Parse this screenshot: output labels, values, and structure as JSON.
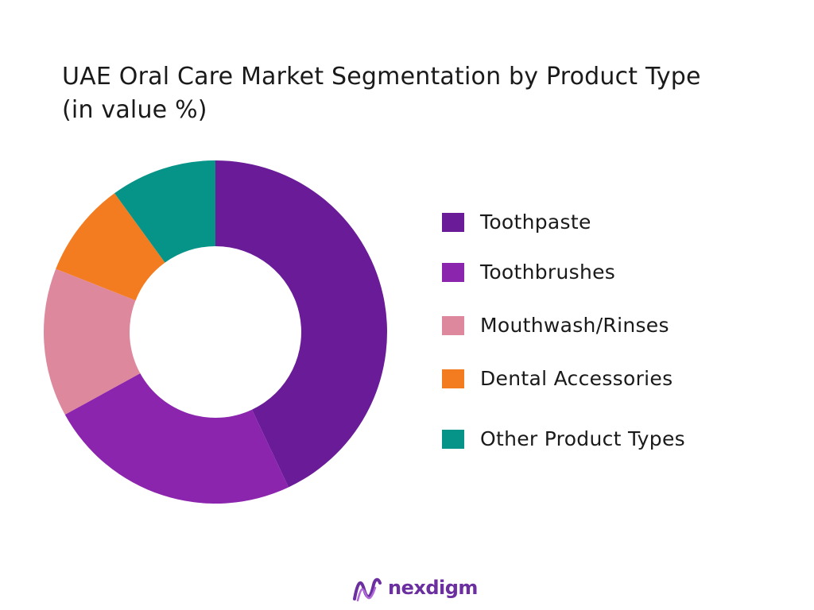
{
  "header": {
    "title_line1": "UAE Oral Care Market Segmentation by Product Type",
    "title_line2": "(in value %)"
  },
  "chart_data": {
    "type": "pie",
    "donut": true,
    "title": "UAE Oral Care Market Segmentation by Product Type (in value %)",
    "categories": [
      "Toothpaste",
      "Toothbrushes",
      "Mouthwash/Rinses",
      "Dental Accessories",
      "Other Product Types"
    ],
    "values": [
      43,
      24,
      14,
      9,
      10
    ],
    "colors": [
      "#691b98",
      "#8c25ad",
      "#de889e",
      "#f47c20",
      "#079488"
    ],
    "legend_position": "right"
  },
  "legend": {
    "items": [
      {
        "label": "Toothpaste",
        "color": "#691b98"
      },
      {
        "label": "Toothbrushes",
        "color": "#8c25ad"
      },
      {
        "label": "Mouthwash/Rinses",
        "color": "#de889e"
      },
      {
        "label": "Dental Accessories",
        "color": "#f47c20"
      },
      {
        "label": "Other Product Types",
        "color": "#079488"
      }
    ]
  },
  "brand": {
    "name": "nexdigm",
    "icon": "nexdigm-logo-icon",
    "color": "#6b2fa0"
  }
}
